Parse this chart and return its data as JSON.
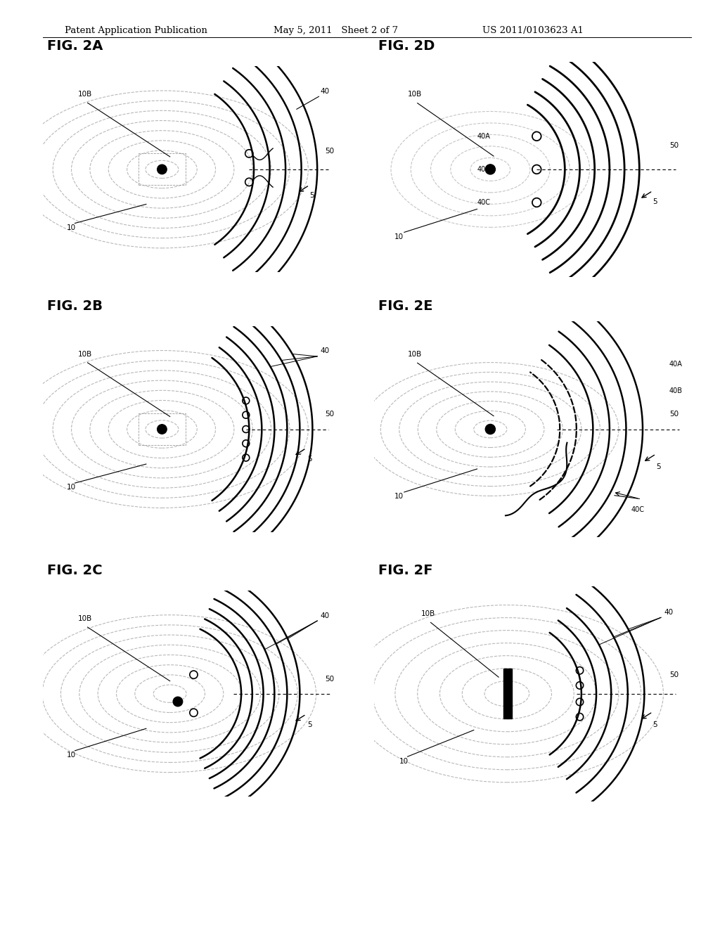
{
  "header_left": "Patent Application Publication",
  "header_mid": "May 5, 2011   Sheet 2 of 7",
  "header_right": "US 2011/0103623 A1",
  "background_color": "#ffffff"
}
